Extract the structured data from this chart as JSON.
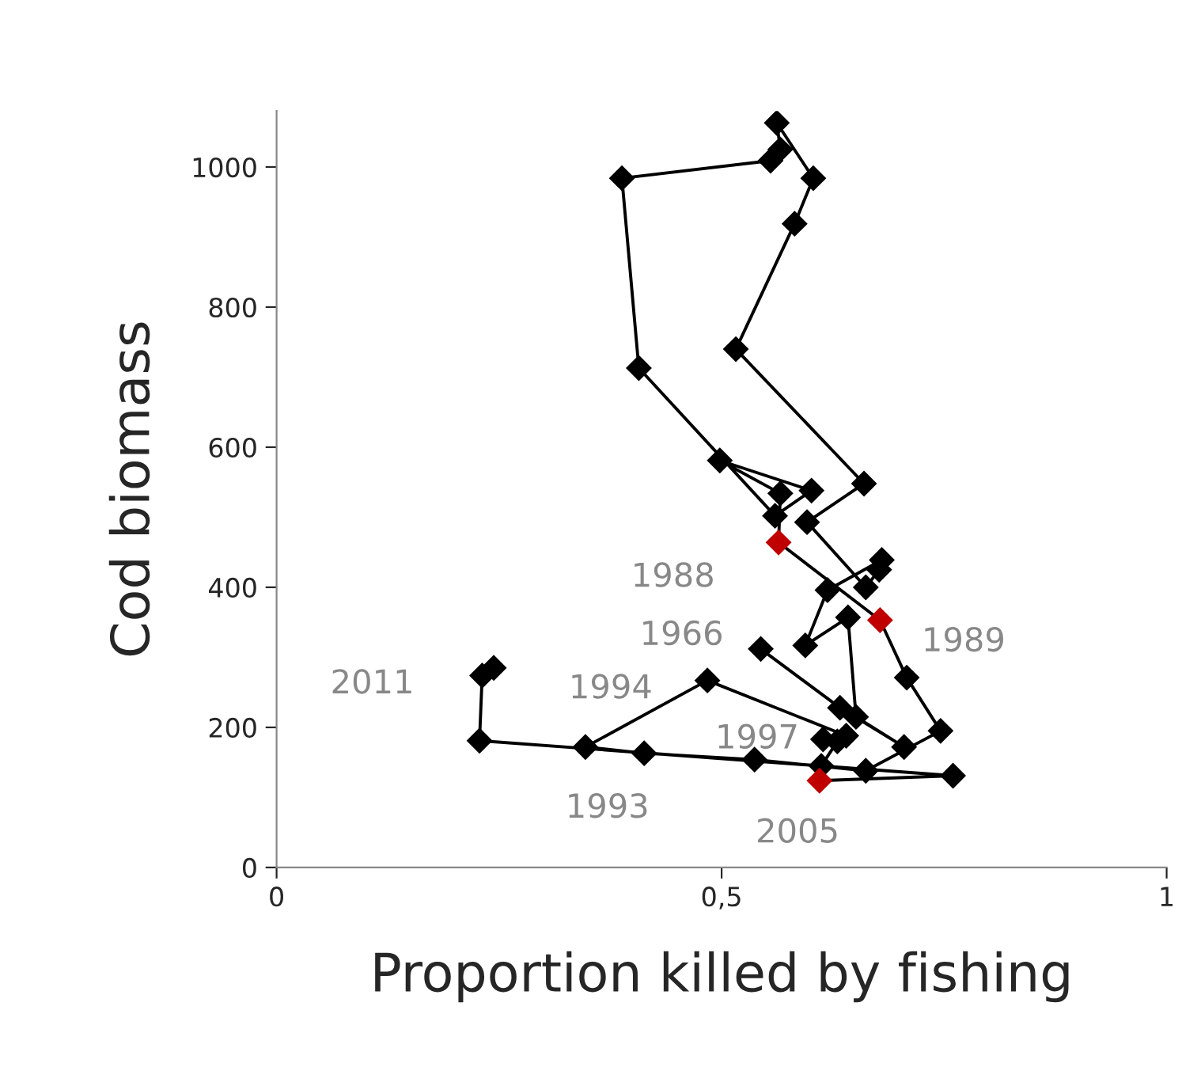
{
  "chart_data": {
    "type": "line",
    "xlabel": "Proportion killed by fishing",
    "ylabel": "Cod biomass",
    "xlim": [
      0,
      1
    ],
    "xticks": [
      0,
      {
        "value": 0.5,
        "label": "0,5"
      },
      1
    ],
    "ylim": [
      0,
      1080
    ],
    "yticks": [
      0,
      200,
      400,
      600,
      800,
      1000
    ],
    "grid": false,
    "legend": false,
    "marker": "diamond",
    "line_style": "solid",
    "series": [
      {
        "color": "#000000",
        "x": [
          0.544,
          0.633,
          0.705,
          0.651,
          0.642,
          0.594,
          0.619,
          0.68,
          0.677,
          0.662,
          0.596,
          0.66,
          0.516,
          0.582,
          0.603,
          0.562,
          0.566,
          0.555,
          0.388,
          0.407,
          0.56,
          0.601,
          0.498,
          0.566,
          0.564,
          0.678,
          0.708,
          0.746,
          0.662,
          0.537,
          0.413,
          0.347,
          0.484,
          0.64,
          0.614,
          0.63,
          0.612,
          0.61,
          0.76,
          0.228,
          0.231,
          0.244
        ],
        "values": [
          312,
          228,
          172,
          215,
          357,
          317,
          396,
          439,
          425,
          400,
          493,
          548,
          740,
          919,
          984,
          1063,
          1025,
          1009,
          984,
          713,
          502,
          538,
          581,
          534,
          464,
          353,
          271,
          195,
          138,
          154,
          163,
          172,
          267,
          188,
          183,
          180,
          145,
          124,
          131,
          181,
          274,
          285
        ],
        "colors": [
          "#000000",
          "#000000",
          "#000000",
          "#000000",
          "#000000",
          "#000000",
          "#000000",
          "#000000",
          "#000000",
          "#000000",
          "#000000",
          "#000000",
          "#000000",
          "#000000",
          "#000000",
          "#000000",
          "#000000",
          "#000000",
          "#000000",
          "#000000",
          "#000000",
          "#000000",
          "#000000",
          "#000000",
          "#c00000",
          "#c00000",
          "#000000",
          "#000000",
          "#000000",
          "#000000",
          "#000000",
          "#000000",
          "#000000",
          "#000000",
          "#000000",
          "#000000",
          "#000000",
          "#c00000",
          "#000000",
          "#000000",
          "#000000",
          "#000000"
        ]
      }
    ],
    "annotations": [
      {
        "text": "1966",
        "x": 0.544,
        "y": 312
      },
      {
        "text": "1988",
        "x": 0.564,
        "y": 464
      },
      {
        "text": "1989",
        "x": 0.678,
        "y": 353
      },
      {
        "text": "1993",
        "x": 0.347,
        "y": 172
      },
      {
        "text": "1994",
        "x": 0.484,
        "y": 267
      },
      {
        "text": "1997",
        "x": 0.614,
        "y": 183
      },
      {
        "text": "2005",
        "x": 0.61,
        "y": 124
      },
      {
        "text": "2011",
        "x": 0.231,
        "y": 274
      }
    ]
  }
}
